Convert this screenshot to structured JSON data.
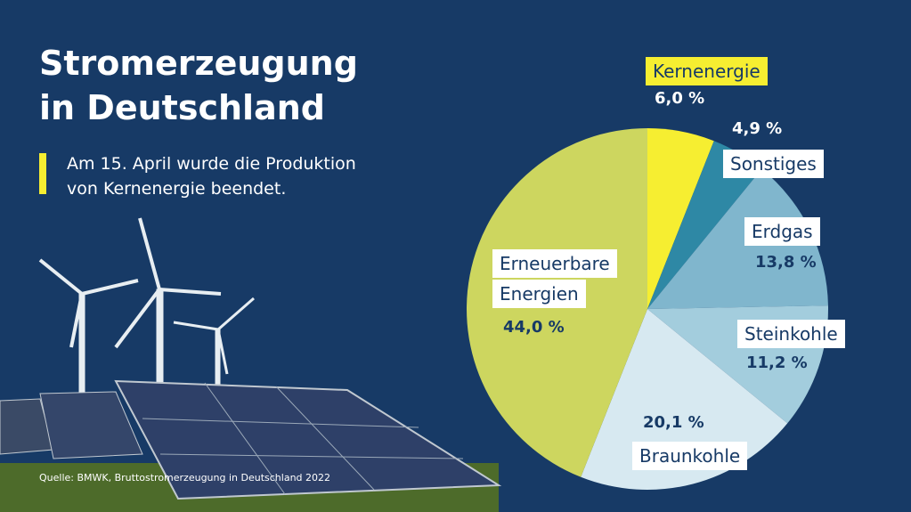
{
  "chart_data": {
    "type": "pie",
    "title": "Stromerzeugung in Deutschland",
    "subtitle": "Am 15. April wurde die Produktion von Kernenergie beendet.",
    "source": "Quelle: BMWK, Bruttostromerzeugung in Deutschland 2022",
    "categories": [
      "Kernenergie",
      "Sonstiges",
      "Erdgas",
      "Steinkohle",
      "Braunkohle",
      "Erneuerbare Energien"
    ],
    "values": [
      6.0,
      4.9,
      13.8,
      11.2,
      20.1,
      44.0
    ],
    "value_labels": [
      "6,0 %",
      "4,9 %",
      "13,8 %",
      "11,2 %",
      "20,1 %",
      "44,0 %"
    ],
    "colors": [
      "#f6ee31",
      "#2e88a5",
      "#80b6cd",
      "#a3cddd",
      "#d7e9f1",
      "#cdd65f"
    ]
  }
}
